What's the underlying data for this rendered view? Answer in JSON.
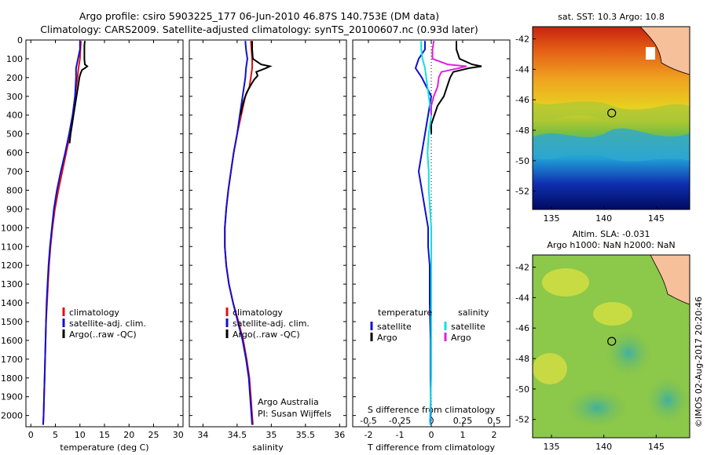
{
  "header": {
    "title_line1": "Argo profile: csiro 5903225_177 06-Jun-2010 46.87S 140.753E (DM data)",
    "title_line2": "Climatology: CARS2009. Satellite-adjusted climatology: synTS_20100607.nc (0.93d later)"
  },
  "side_text": {
    "credit": "©IMOS 02-Aug-2017 20:20:46",
    "institution": "Argo Australia",
    "pi": "PI: Susan Wijffels"
  },
  "colors": {
    "climatology": "#e01010",
    "satellite": "#1010d0",
    "argo": "#000000",
    "salinity_satellite": "#10e0e0",
    "salinity_argo": "#e020e0"
  },
  "chart_data": [
    {
      "type": "line",
      "panel": "temperature",
      "xlabel": "temperature (deg C)",
      "ylabel": "",
      "xlim": [
        -1,
        31
      ],
      "ylim": [
        2060,
        0
      ],
      "x_ticks": [
        "0",
        "5",
        "10",
        "15",
        "20",
        "25",
        "30"
      ],
      "y_ticks": [
        "0",
        "100",
        "200",
        "300",
        "400",
        "500",
        "600",
        "700",
        "800",
        "900",
        "1000",
        "1100",
        "1200",
        "1300",
        "1400",
        "1500",
        "1600",
        "1700",
        "1800",
        "1900",
        "2000"
      ],
      "legend_position": "lower-center",
      "legend": [
        "climatology",
        "satellite-adj. clim.",
        "Argo(..raw -QC)"
      ],
      "series": [
        {
          "name": "climatology",
          "color_key": "climatology",
          "depth": [
            5,
            50,
            100,
            150,
            200,
            300,
            400,
            500,
            600,
            700,
            800,
            900,
            1000,
            1100,
            1200,
            1300,
            1400,
            1500,
            1600,
            1700,
            1800,
            1900,
            2000,
            2050
          ],
          "values": [
            10.2,
            10.1,
            10.0,
            9.7,
            9.5,
            9.0,
            8.6,
            8.0,
            7.2,
            6.4,
            5.6,
            4.9,
            4.4,
            4.0,
            3.7,
            3.5,
            3.3,
            3.1,
            3.0,
            2.9,
            2.8,
            2.7,
            2.6,
            2.5
          ]
        },
        {
          "name": "satellite-adj. clim.",
          "color_key": "satellite",
          "depth": [
            5,
            50,
            100,
            150,
            200,
            300,
            400,
            500,
            600,
            700,
            800,
            900,
            1000,
            1100,
            1200,
            1300,
            1400,
            1500,
            1600,
            1700,
            1800,
            1900,
            2000,
            2050
          ],
          "values": [
            10.0,
            10.0,
            9.6,
            9.2,
            9.2,
            9.0,
            8.5,
            7.8,
            7.0,
            6.1,
            5.3,
            4.7,
            4.3,
            3.9,
            3.6,
            3.4,
            3.2,
            3.1,
            3.0,
            2.9,
            2.8,
            2.7,
            2.6,
            2.5
          ]
        },
        {
          "name": "Argo(..raw -QC)",
          "color_key": "argo",
          "depth": [
            5,
            30,
            60,
            100,
            130,
            140,
            150,
            160,
            180,
            200,
            250,
            300,
            350,
            400,
            450,
            500,
            550
          ],
          "values": [
            11.0,
            10.9,
            10.9,
            10.9,
            11.0,
            11.5,
            11.0,
            10.4,
            10.1,
            9.9,
            9.6,
            9.3,
            9.0,
            8.7,
            8.4,
            8.1,
            7.9
          ]
        }
      ]
    },
    {
      "type": "line",
      "panel": "salinity",
      "xlabel": "salinity",
      "ylabel": "",
      "xlim": [
        33.8,
        36.1
      ],
      "ylim": [
        2060,
        0
      ],
      "x_ticks": [
        "34",
        "34.5",
        "35",
        "35.5",
        "36"
      ],
      "legend_position": "lower-center",
      "legend": [
        "climatology",
        "satellite-adj. clim.",
        "Argo(..raw -QC)"
      ],
      "series": [
        {
          "name": "climatology",
          "color_key": "climatology",
          "depth": [
            5,
            50,
            100,
            150,
            200,
            250,
            300,
            400,
            500,
            600,
            700,
            800,
            900,
            1000,
            1100,
            1200,
            1300,
            1400,
            1500,
            1600,
            1700,
            1800,
            1900,
            2000,
            2050
          ],
          "values": [
            34.7,
            34.71,
            34.72,
            34.72,
            34.7,
            34.68,
            34.62,
            34.56,
            34.5,
            34.45,
            34.41,
            34.37,
            34.34,
            34.32,
            34.32,
            34.34,
            34.38,
            34.44,
            34.52,
            34.59,
            34.64,
            34.68,
            34.7,
            34.72,
            34.73
          ]
        },
        {
          "name": "satellite-adj. clim.",
          "color_key": "satellite",
          "depth": [
            5,
            50,
            100,
            150,
            200,
            250,
            300,
            400,
            500,
            600,
            700,
            800,
            900,
            1000,
            1100,
            1200,
            1300,
            1400,
            1500,
            1600,
            1700,
            1800,
            1900,
            2000,
            2050
          ],
          "values": [
            34.62,
            34.63,
            34.65,
            34.63,
            34.62,
            34.6,
            34.58,
            34.54,
            34.5,
            34.45,
            34.41,
            34.37,
            34.34,
            34.32,
            34.32,
            34.34,
            34.38,
            34.44,
            34.51,
            34.58,
            34.63,
            34.67,
            34.69,
            34.71,
            34.72
          ]
        },
        {
          "name": "Argo(..raw -QC)",
          "color_key": "argo",
          "depth": [
            5,
            50,
            100,
            130,
            140,
            150,
            170,
            190,
            210,
            240,
            280,
            320,
            360,
            400
          ],
          "values": [
            34.72,
            34.72,
            34.73,
            34.85,
            34.98,
            34.92,
            34.78,
            34.8,
            34.75,
            34.7,
            34.64,
            34.6,
            34.57,
            34.55
          ]
        }
      ]
    },
    {
      "type": "line",
      "panel": "difference",
      "xlabel": "T difference from climatology",
      "xlabel_top": "S difference from climatology",
      "ylabel": "",
      "xlim": [
        -2.5,
        2.5
      ],
      "xlim_salinity": [
        -0.625,
        0.625
      ],
      "ylim": [
        2060,
        0
      ],
      "x_ticks": [
        "-2",
        "-1",
        "0",
        "1",
        "2"
      ],
      "x_ticks_salinity": [
        "-0.5",
        "-0.25",
        "0",
        "0.25",
        "0.5"
      ],
      "legend_position": "lower-center",
      "legend_groups": [
        {
          "heading": "temperature",
          "items": [
            "satellite",
            "Argo"
          ]
        },
        {
          "heading": "salinity",
          "items": [
            "satellite",
            "Argo"
          ]
        }
      ],
      "series": [
        {
          "name": "temperature satellite",
          "color_key": "satellite",
          "depth": [
            5,
            50,
            100,
            150,
            200,
            300,
            400,
            500,
            600,
            700,
            800,
            900,
            1000,
            1100,
            1200,
            1400,
            1600,
            1800,
            2000,
            2050
          ],
          "values": [
            -0.2,
            -0.2,
            -0.4,
            -0.5,
            -0.3,
            0,
            -0.1,
            -0.2,
            -0.3,
            -0.4,
            -0.3,
            -0.2,
            -0.1,
            -0.1,
            -0.05,
            -0.05,
            -0.02,
            -0.02,
            -0.02,
            -0.02
          ]
        },
        {
          "name": "temperature Argo",
          "color_key": "argo",
          "depth": [
            5,
            50,
            100,
            130,
            140,
            150,
            170,
            200,
            250,
            300,
            350,
            400,
            450,
            500
          ],
          "values": [
            0.8,
            0.8,
            0.9,
            1.3,
            1.6,
            1.2,
            0.7,
            0.6,
            0.5,
            0.4,
            0.2,
            0.1,
            0.0,
            0.0
          ]
        },
        {
          "name": "salinity satellite",
          "color_key": "salinity_satellite",
          "depth": [
            5,
            50,
            100,
            150,
            200,
            300,
            400,
            500,
            600,
            700,
            800,
            900,
            1000,
            1200,
            1400,
            1600,
            1800,
            2000,
            2050
          ],
          "values": [
            -0.08,
            -0.08,
            -0.07,
            -0.05,
            -0.04,
            -0.02,
            0,
            -0.02,
            -0.03,
            -0.02,
            -0.02,
            -0.01,
            0,
            0,
            0,
            0,
            0,
            -0.01,
            -0.01
          ]
        },
        {
          "name": "salinity Argo",
          "color_key": "salinity_argo",
          "depth": [
            5,
            50,
            100,
            130,
            140,
            150,
            170,
            200,
            250,
            300,
            350,
            400
          ],
          "values": [
            0.02,
            0.01,
            0.01,
            0.13,
            0.28,
            0.22,
            0.08,
            0.06,
            0.05,
            0.02,
            0.0,
            0.0
          ]
        }
      ]
    },
    {
      "type": "heatmap",
      "panel": "sst_map",
      "title": "sat. SST: 10.3 Argo: 10.8",
      "x_ticks": [
        "135",
        "140",
        "145"
      ],
      "y_ticks": [
        "-42",
        "-44",
        "-46",
        "-48",
        "-50",
        "-52"
      ],
      "xlim": [
        133.2,
        148.2
      ],
      "ylim": [
        -53.2,
        -41.2
      ],
      "marker": {
        "lon": 140.753,
        "lat": -46.87
      }
    },
    {
      "type": "heatmap",
      "panel": "sla_map",
      "title_line1": "Altim. SLA: -0.031",
      "title_line2": "Argo h1000: NaN h2000: NaN",
      "x_ticks": [
        "135",
        "140",
        "145"
      ],
      "y_ticks": [
        "-42",
        "-44",
        "-46",
        "-48",
        "-50",
        "-52"
      ],
      "xlim": [
        133.2,
        148.2
      ],
      "ylim": [
        -53.2,
        -41.2
      ],
      "marker": {
        "lon": 140.753,
        "lat": -46.87
      }
    }
  ]
}
